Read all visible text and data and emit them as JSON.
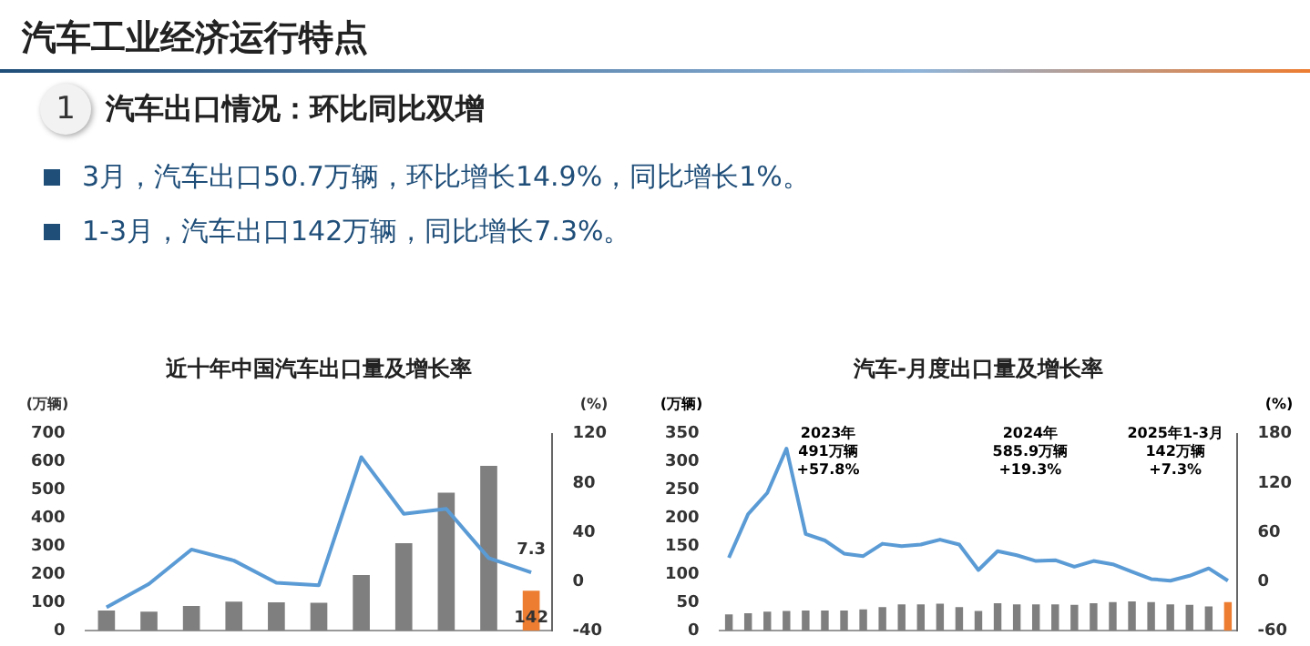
{
  "chart_data": [
    {
      "type": "other",
      "title": "汽车工业经济运行特点",
      "subtitle": "汽车出口情况：环比同比双增",
      "annotations": [
        "1",
        "3月，汽车出口50.7万辆，环比增长14.9%，同比增长1%。",
        "1-3月，汽车出口142万辆，同比增长7.3%。"
      ]
    },
    {
      "type": "bar",
      "title": "近十年中国汽车出口量及增长率",
      "ylabel": "(万辆)",
      "y2label": "(%)",
      "categories": [
        null,
        null,
        null,
        null,
        null,
        null,
        null,
        null,
        null,
        null,
        null
      ],
      "series": [
        {
          "type": "bar",
          "colors": [
            "#7f7f7f",
            "#7f7f7f",
            "#7f7f7f",
            "#7f7f7f",
            "#7f7f7f",
            "#7f7f7f",
            "#7f7f7f",
            "#7f7f7f",
            "#7f7f7f",
            "#7f7f7f",
            "#ed7d31"
          ],
          "values": [
            72,
            68,
            88,
            103,
            101,
            99,
            198,
            311,
            491,
            586,
            142
          ],
          "value_labels": [
            null,
            null,
            null,
            null,
            null,
            null,
            null,
            null,
            null,
            null,
            "142"
          ]
        },
        {
          "type": "line",
          "axis": "y2",
          "color": "#5b9bd5",
          "values": [
            -21,
            -2,
            26,
            17,
            -1,
            -3,
            101,
            55,
            59,
            19,
            7.3
          ],
          "value_labels": [
            null,
            null,
            null,
            null,
            null,
            null,
            null,
            null,
            null,
            null,
            "7.3"
          ]
        }
      ],
      "ylim": [
        0,
        700
      ],
      "yticks": [
        0,
        100,
        200,
        300,
        400,
        500,
        600,
        700
      ],
      "y2lim": [
        -40,
        120
      ],
      "y2ticks": [
        -40,
        0,
        40,
        80,
        120
      ],
      "tick_labels": "y",
      "marker": "none",
      "line_style": "solid",
      "legend": false,
      "grid": false
    },
    {
      "type": "bar",
      "title": "汽车-月度出口量及增长率",
      "ylabel": "(万辆)",
      "y2label": "(%)",
      "categories": [
        null,
        null,
        null,
        null,
        null,
        null,
        null,
        null,
        null,
        null,
        null,
        null,
        null,
        null,
        null,
        null,
        null,
        null,
        null,
        null,
        null,
        null,
        null,
        null,
        null,
        null,
        null
      ],
      "series": [
        {
          "type": "bar",
          "colors": [
            "#7f7f7f",
            "#7f7f7f",
            "#7f7f7f",
            "#7f7f7f",
            "#7f7f7f",
            "#7f7f7f",
            "#7f7f7f",
            "#7f7f7f",
            "#7f7f7f",
            "#7f7f7f",
            "#7f7f7f",
            "#7f7f7f",
            "#7f7f7f",
            "#7f7f7f",
            "#7f7f7f",
            "#7f7f7f",
            "#7f7f7f",
            "#7f7f7f",
            "#7f7f7f",
            "#7f7f7f",
            "#7f7f7f",
            "#7f7f7f",
            "#7f7f7f",
            "#7f7f7f",
            "#7f7f7f",
            "#7f7f7f",
            "#ed7d31"
          ],
          "values": [
            29,
            31,
            34,
            35,
            36,
            36,
            36,
            38,
            42,
            47,
            47,
            48,
            42,
            35,
            49,
            47,
            47,
            47,
            46,
            49,
            51,
            52,
            51,
            47,
            46,
            43,
            51
          ]
        },
        {
          "type": "line",
          "axis": "y2",
          "color": "#5b9bd5",
          "values": [
            29,
            82,
            108,
            162,
            58,
            50,
            34,
            31,
            46,
            43,
            45,
            51,
            45,
            14,
            37,
            32,
            25,
            26,
            18,
            25,
            21,
            12,
            3,
            1,
            7,
            16,
            1
          ]
        }
      ],
      "annotations": [
        "2023年\n491万辆\n+57.8%",
        "2024年\n585.9万辆\n+19.3%",
        "2025年1-3月\n142万辆\n+7.3%"
      ],
      "ylim": [
        0,
        350
      ],
      "yticks": [
        0,
        50,
        100,
        150,
        200,
        250,
        300,
        350
      ],
      "y2lim": [
        -60,
        180
      ],
      "y2ticks": [
        -60,
        0,
        60,
        120,
        180
      ],
      "tick_labels": "y",
      "marker": "none",
      "line_style": "solid",
      "legend": false,
      "grid": false
    }
  ]
}
